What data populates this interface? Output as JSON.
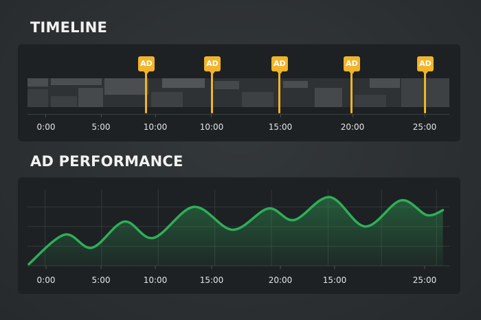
{
  "timeline": {
    "title": "TIMELINE",
    "ad_label": "AD",
    "ad_markers": [
      "AD",
      "AD",
      "AD",
      "AD",
      "AD"
    ],
    "tick_labels": [
      "0:00",
      "5:00",
      "10:00",
      "10:00",
      "15:00",
      "20:00",
      "25:00"
    ]
  },
  "ad_performance": {
    "title": "AD PERFORMANCE",
    "tick_labels": [
      "0:00",
      "5:00",
      "10:00",
      "15:00",
      "20:00",
      "15:00",
      "25:00"
    ]
  },
  "colors": {
    "ad_marker": "#f2b42a",
    "performance_line": "#2fae59",
    "panel_bg": "#1d2123",
    "page_bg": "#2c3032"
  },
  "chart_data": {
    "type": "area",
    "title": "AD PERFORMANCE",
    "xlabel": "",
    "ylabel": "",
    "x_tick_labels": [
      "0:00",
      "5:00",
      "10:00",
      "15:00",
      "20:00",
      "15:00",
      "25:00"
    ],
    "grid": true,
    "ylim": [
      0,
      5
    ],
    "series": [
      {
        "points": [
          [
            0.0,
            0.1
          ],
          [
            2.2,
            1.9
          ],
          [
            3.9,
            1.1
          ],
          [
            5.9,
            2.7
          ],
          [
            7.7,
            1.7
          ],
          [
            10.2,
            3.6
          ],
          [
            12.6,
            2.2
          ],
          [
            14.8,
            3.5
          ],
          [
            16.4,
            2.8
          ],
          [
            18.6,
            4.2
          ],
          [
            20.8,
            2.4
          ],
          [
            23.0,
            4.0
          ],
          [
            24.6,
            3.1
          ],
          [
            25.6,
            3.4
          ]
        ]
      }
    ]
  }
}
